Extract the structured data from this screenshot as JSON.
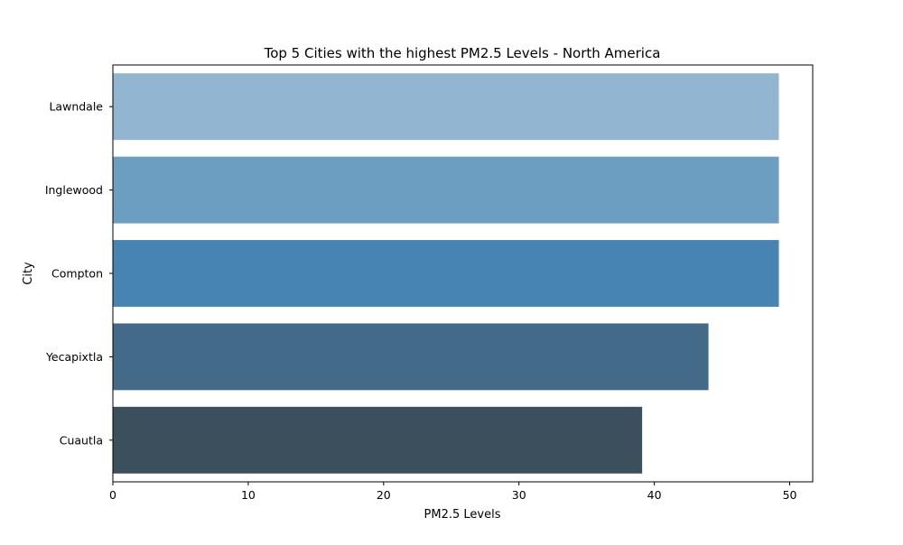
{
  "chart_data": {
    "type": "bar",
    "orientation": "horizontal",
    "title": "Top 5 Cities with the highest PM2.5 Levels - North America",
    "xlabel": "PM2.5 Levels",
    "ylabel": "City",
    "categories": [
      "Lawndale",
      "Inglewood",
      "Compton",
      "Yecapixtla",
      "Cuautla"
    ],
    "values": [
      49.2,
      49.2,
      49.2,
      44.0,
      39.1
    ],
    "xlim": [
      0,
      51.7
    ],
    "xticks": [
      0,
      10,
      20,
      30,
      40,
      50
    ],
    "grid": false,
    "legend": "none",
    "colors": [
      "#92b6d1",
      "#6c9ec1",
      "#4884b3",
      "#436b89",
      "#3c4f5d"
    ]
  }
}
